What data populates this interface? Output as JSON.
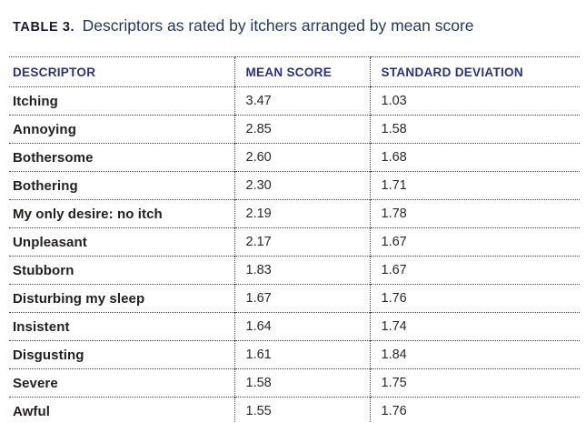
{
  "caption": {
    "label": "TABLE 3.",
    "text": "Descriptors as rated by itchers arranged by mean score"
  },
  "table": {
    "columns": [
      "DESCRIPTOR",
      "MEAN SCORE",
      "STANDARD DEVIATION"
    ],
    "rows": [
      {
        "descriptor": "Itching",
        "mean": "3.47",
        "sd": "1.03"
      },
      {
        "descriptor": "Annoying",
        "mean": "2.85",
        "sd": "1.58"
      },
      {
        "descriptor": "Bothersome",
        "mean": "2.60",
        "sd": "1.68"
      },
      {
        "descriptor": "Bothering",
        "mean": "2.30",
        "sd": "1.71"
      },
      {
        "descriptor": "My only desire: no itch",
        "mean": "2.19",
        "sd": "1.78"
      },
      {
        "descriptor": "Unpleasant",
        "mean": "2.17",
        "sd": "1.67"
      },
      {
        "descriptor": "Stubborn",
        "mean": "1.83",
        "sd": "1.67"
      },
      {
        "descriptor": "Disturbing my sleep",
        "mean": "1.67",
        "sd": "1.76"
      },
      {
        "descriptor": "Insistent",
        "mean": "1.64",
        "sd": "1.74"
      },
      {
        "descriptor": "Disgusting",
        "mean": "1.61",
        "sd": "1.84"
      },
      {
        "descriptor": "Severe",
        "mean": "1.58",
        "sd": "1.75"
      },
      {
        "descriptor": "Awful",
        "mean": "1.55",
        "sd": "1.76"
      }
    ]
  },
  "colors": {
    "header_blue": "#29327d",
    "caption_navy": "#24395e",
    "body_text": "#232020",
    "rule_dots": "#4c4c4c"
  }
}
